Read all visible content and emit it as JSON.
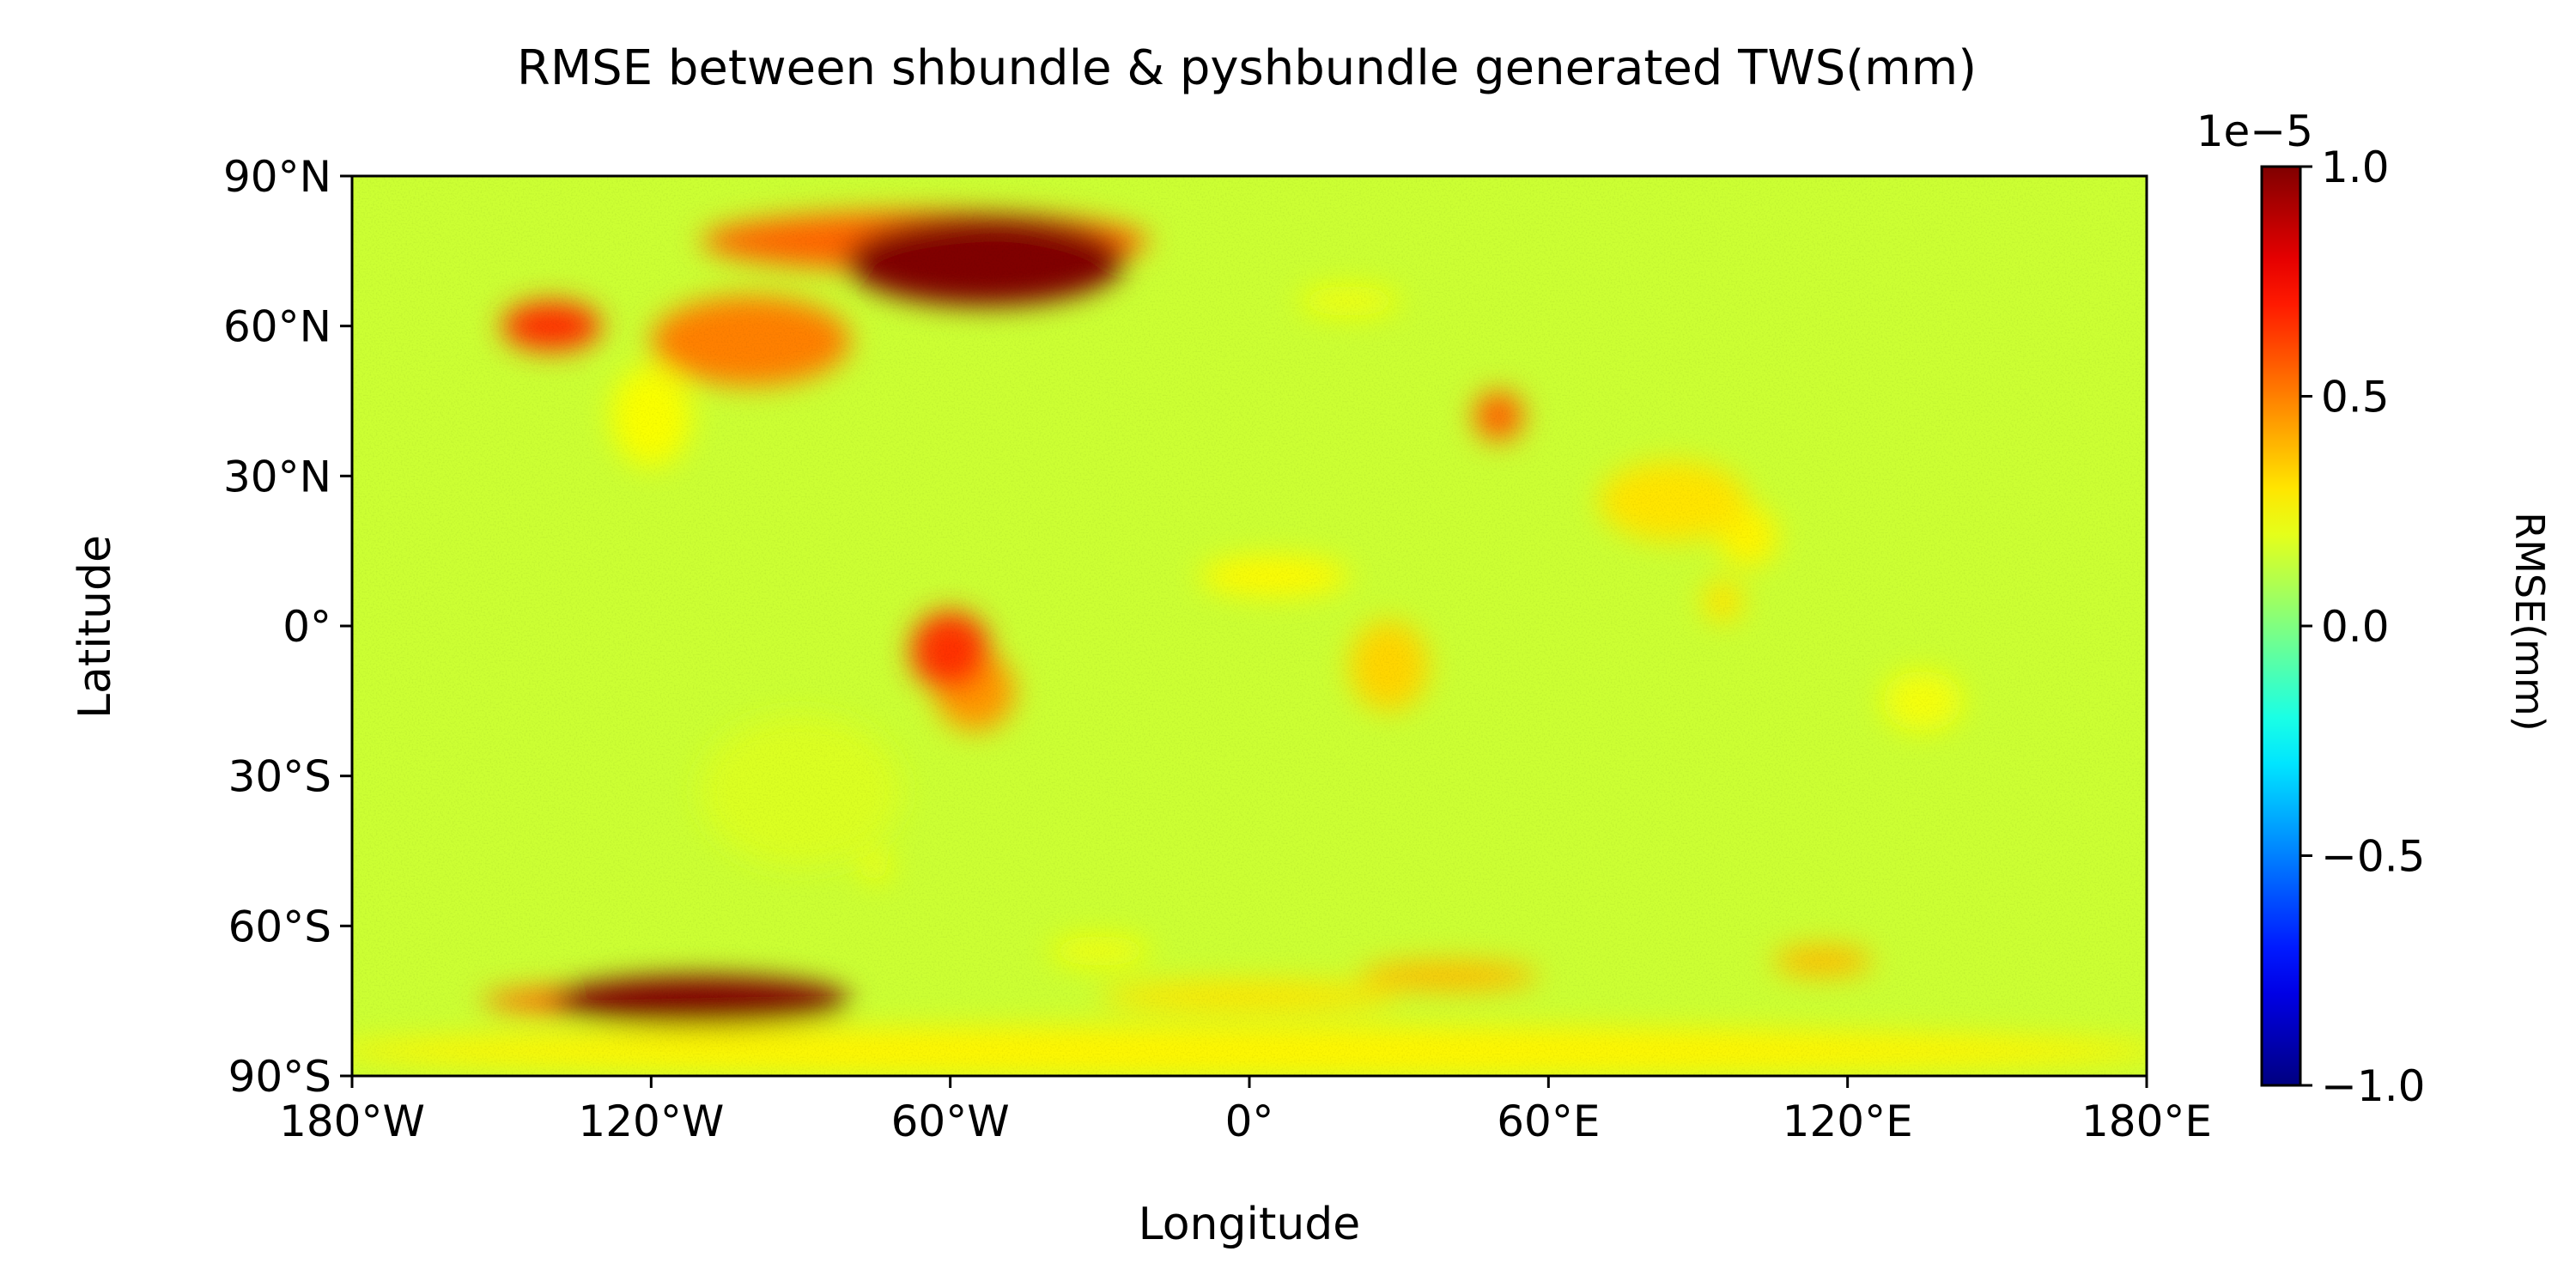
{
  "chart_data": {
    "type": "heatmap",
    "title": "RMSE between shbundle & pyshbundle generated TWS(mm)",
    "xlabel": "Longitude",
    "ylabel": "Latitude",
    "xlim": [
      -180,
      180
    ],
    "ylim": [
      -90,
      90
    ],
    "x_ticks": [
      -180,
      -120,
      -60,
      0,
      60,
      120,
      180
    ],
    "x_tick_labels": [
      "180°W",
      "120°W",
      "60°W",
      "0°",
      "60°E",
      "120°E",
      "180°E"
    ],
    "y_ticks": [
      90,
      60,
      30,
      0,
      -30,
      -60,
      -90
    ],
    "y_tick_labels": [
      "90°N",
      "60°N",
      "30°N",
      "0°",
      "30°S",
      "60°S",
      "90°S"
    ],
    "grid": false,
    "colormap": "jet",
    "background_value": 0.15,
    "colorbar": {
      "label": "RMSE(mm)",
      "range": [
        -1.0,
        1.0
      ],
      "ticks": [
        1.0,
        0.5,
        0.0,
        -0.5,
        -1.0
      ],
      "tick_labels": [
        "1.0",
        "0.5",
        "0.0",
        "−0.5",
        "−1.0"
      ],
      "offset_label": "1e−5",
      "position": "right"
    },
    "hotspots": [
      {
        "lon": -53,
        "lat": 73,
        "rx": 28,
        "ry": 9,
        "value": 1.0
      },
      {
        "lon": -65,
        "lat": 77,
        "rx": 45,
        "ry": 6,
        "value": 0.55
      },
      {
        "lon": -110,
        "lat": -75,
        "rx": 30,
        "ry": 5,
        "value": 1.0
      },
      {
        "lon": -120,
        "lat": -75,
        "rx": 34,
        "ry": 3,
        "value": 0.55
      },
      {
        "lon": -140,
        "lat": 60,
        "rx": 10,
        "ry": 5,
        "value": 0.65
      },
      {
        "lon": -100,
        "lat": 57,
        "rx": 20,
        "ry": 9,
        "value": 0.5
      },
      {
        "lon": -60,
        "lat": -5,
        "rx": 8,
        "ry": 8,
        "value": 0.65
      },
      {
        "lon": -55,
        "lat": -13,
        "rx": 8,
        "ry": 8,
        "value": 0.45
      },
      {
        "lon": 50,
        "lat": 42,
        "rx": 5,
        "ry": 5,
        "value": 0.55
      },
      {
        "lon": 28,
        "lat": -8,
        "rx": 8,
        "ry": 9,
        "value": 0.33
      },
      {
        "lon": 5,
        "lat": 10,
        "rx": 15,
        "ry": 4,
        "value": 0.26
      },
      {
        "lon": 85,
        "lat": 25,
        "rx": 15,
        "ry": 8,
        "value": 0.3
      },
      {
        "lon": 100,
        "lat": 18,
        "rx": 6,
        "ry": 6,
        "value": 0.27
      },
      {
        "lon": 95,
        "lat": 5,
        "rx": 4,
        "ry": 4,
        "value": 0.3
      },
      {
        "lon": 40,
        "lat": -70,
        "rx": 18,
        "ry": 3,
        "value": 0.38
      },
      {
        "lon": 0,
        "lat": -74,
        "rx": 30,
        "ry": 3,
        "value": 0.3
      },
      {
        "lon": 115,
        "lat": -67,
        "rx": 10,
        "ry": 3,
        "value": 0.38
      },
      {
        "lon": 20,
        "lat": 65,
        "rx": 10,
        "ry": 3,
        "value": 0.22
      },
      {
        "lon": -120,
        "lat": 42,
        "rx": 8,
        "ry": 10,
        "value": 0.24
      },
      {
        "lon": 135,
        "lat": -15,
        "rx": 8,
        "ry": 6,
        "value": 0.23
      },
      {
        "lon": -75,
        "lat": -48,
        "rx": 3,
        "ry": 3,
        "value": 0.22
      },
      {
        "lon": -30,
        "lat": -65,
        "rx": 10,
        "ry": 3,
        "value": 0.22
      },
      {
        "lon": 0,
        "lat": -85,
        "rx": 185,
        "ry": 5,
        "value": 0.27
      },
      {
        "lon": -90,
        "lat": -33,
        "rx": 20,
        "ry": 15,
        "value": 0.18
      }
    ]
  }
}
